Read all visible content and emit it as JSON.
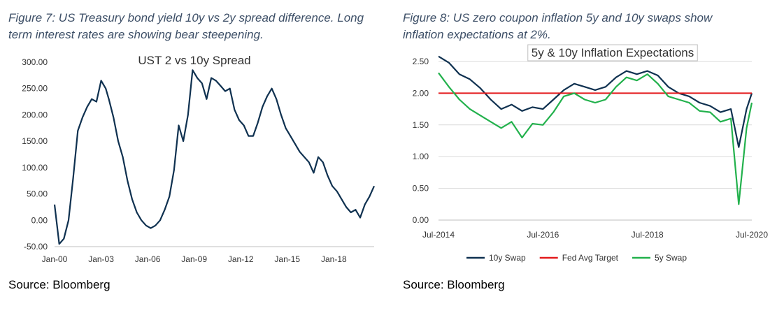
{
  "figures": [
    {
      "caption": "Figure 7: US Treasury bond yield 10y vs 2y spread difference. Long\nterm interest rates are showing bear steepening.",
      "source": "Source: Bloomberg"
    },
    {
      "caption": "Figure 8: US zero coupon inflation 5y and 10y swaps show\ninflation expectations at 2%.",
      "source": "Source: Bloomberg"
    }
  ],
  "colors": {
    "navy": "#0f3150",
    "red": "#e31a1c",
    "green": "#22b14c",
    "grid": "#d9d9d9"
  },
  "chart_data": [
    {
      "type": "line",
      "title": "UST 2 vs 10y Spread",
      "xlabel": "",
      "ylabel": "",
      "x_ticks": [
        2000,
        2003,
        2006,
        2009,
        2012,
        2015,
        2018
      ],
      "x_tick_labels": [
        "Jan-00",
        "Jan-03",
        "Jan-06",
        "Jan-09",
        "Jan-12",
        "Jan-15",
        "Jan-18"
      ],
      "xlim": [
        2000,
        2020.6
      ],
      "ylim": [
        -50,
        300
      ],
      "y_ticks": [
        -50,
        0,
        50,
        100,
        150,
        200,
        250,
        300
      ],
      "y_tick_labels": [
        "-50.00",
        "0.00",
        "50.00",
        "100.00",
        "150.00",
        "200.00",
        "250.00",
        "300.00"
      ],
      "grid": false,
      "series": [
        {
          "name": "",
          "color": "#0f3150",
          "x": [
            2000.0,
            2000.3,
            2000.6,
            2000.9,
            2001.2,
            2001.5,
            2001.8,
            2002.1,
            2002.4,
            2002.7,
            2003.0,
            2003.3,
            2003.5,
            2003.8,
            2004.1,
            2004.4,
            2004.7,
            2005.0,
            2005.3,
            2005.6,
            2005.9,
            2006.2,
            2006.5,
            2006.8,
            2007.1,
            2007.4,
            2007.7,
            2008.0,
            2008.3,
            2008.6,
            2008.9,
            2009.2,
            2009.5,
            2009.8,
            2010.1,
            2010.4,
            2010.7,
            2011.0,
            2011.3,
            2011.6,
            2011.9,
            2012.2,
            2012.5,
            2012.8,
            2013.1,
            2013.4,
            2013.7,
            2014.0,
            2014.3,
            2014.6,
            2014.9,
            2015.2,
            2015.5,
            2015.8,
            2016.1,
            2016.4,
            2016.7,
            2017.0,
            2017.3,
            2017.6,
            2017.9,
            2018.2,
            2018.5,
            2018.8,
            2019.1,
            2019.4,
            2019.7,
            2020.0,
            2020.3,
            2020.6
          ],
          "y": [
            30,
            -45,
            -35,
            0,
            80,
            170,
            195,
            215,
            230,
            225,
            265,
            250,
            230,
            195,
            150,
            120,
            75,
            40,
            15,
            0,
            -10,
            -15,
            -10,
            0,
            20,
            45,
            95,
            180,
            150,
            200,
            285,
            270,
            260,
            230,
            270,
            265,
            255,
            245,
            250,
            210,
            190,
            180,
            160,
            160,
            185,
            215,
            235,
            250,
            230,
            200,
            175,
            160,
            145,
            130,
            120,
            110,
            90,
            120,
            110,
            85,
            65,
            55,
            40,
            25,
            15,
            20,
            5,
            30,
            45,
            65
          ]
        }
      ]
    },
    {
      "type": "line",
      "title": "5y & 10y Inflation Expectations",
      "xlabel": "",
      "ylabel": "",
      "x_ticks": [
        2014.5,
        2016.5,
        2018.5,
        2020.5
      ],
      "x_tick_labels": [
        "Jul-2014",
        "Jul-2016",
        "Jul-2018",
        "Jul-2020"
      ],
      "xlim": [
        2014.5,
        2020.5
      ],
      "ylim": [
        0,
        2.5
      ],
      "y_ticks": [
        0,
        0.5,
        1.0,
        1.5,
        2.0,
        2.5
      ],
      "y_tick_labels": [
        "0.00",
        "0.50",
        "1.00",
        "1.50",
        "2.00",
        "2.50"
      ],
      "grid": true,
      "legend_position": "bottom",
      "series": [
        {
          "name": "10y Swap",
          "color": "#0f3150",
          "x": [
            2014.5,
            2014.7,
            2014.9,
            2015.1,
            2015.3,
            2015.5,
            2015.7,
            2015.9,
            2016.1,
            2016.3,
            2016.5,
            2016.7,
            2016.9,
            2017.1,
            2017.3,
            2017.5,
            2017.7,
            2017.9,
            2018.1,
            2018.3,
            2018.5,
            2018.7,
            2018.9,
            2019.1,
            2019.3,
            2019.5,
            2019.7,
            2019.9,
            2020.1,
            2020.25,
            2020.4,
            2020.5
          ],
          "y": [
            2.58,
            2.48,
            2.3,
            2.22,
            2.08,
            1.9,
            1.75,
            1.82,
            1.72,
            1.78,
            1.75,
            1.9,
            2.05,
            2.15,
            2.1,
            2.05,
            2.1,
            2.25,
            2.35,
            2.3,
            2.35,
            2.28,
            2.1,
            2.0,
            1.95,
            1.85,
            1.8,
            1.7,
            1.75,
            1.15,
            1.75,
            2.0
          ]
        },
        {
          "name": "Fed Avg Target",
          "color": "#e31a1c",
          "x": [
            2014.5,
            2020.5
          ],
          "y": [
            2.0,
            2.0
          ]
        },
        {
          "name": "5y Swap",
          "color": "#22b14c",
          "x": [
            2014.5,
            2014.7,
            2014.9,
            2015.1,
            2015.3,
            2015.5,
            2015.7,
            2015.9,
            2016.1,
            2016.3,
            2016.5,
            2016.7,
            2016.9,
            2017.1,
            2017.3,
            2017.5,
            2017.7,
            2017.9,
            2018.1,
            2018.3,
            2018.5,
            2018.7,
            2018.9,
            2019.1,
            2019.3,
            2019.5,
            2019.7,
            2019.9,
            2020.1,
            2020.25,
            2020.4,
            2020.5
          ],
          "y": [
            2.32,
            2.1,
            1.9,
            1.75,
            1.65,
            1.55,
            1.45,
            1.55,
            1.3,
            1.52,
            1.5,
            1.7,
            1.95,
            2.0,
            1.9,
            1.85,
            1.9,
            2.1,
            2.25,
            2.2,
            2.3,
            2.15,
            1.95,
            1.9,
            1.85,
            1.72,
            1.7,
            1.55,
            1.6,
            0.25,
            1.45,
            1.85
          ]
        }
      ]
    }
  ]
}
